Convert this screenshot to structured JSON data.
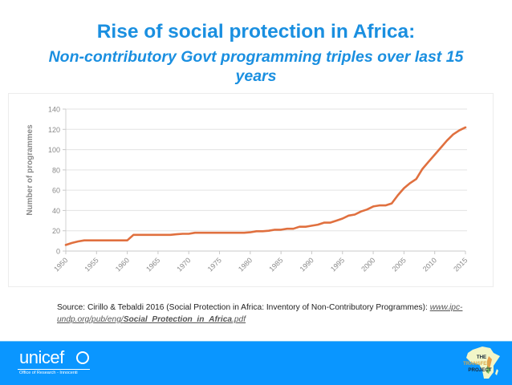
{
  "header": {
    "title": "Rise of social protection in Africa:",
    "subtitle": "Non-contributory Govt programming triples over last 15 years"
  },
  "chart_data": {
    "type": "line",
    "title": "",
    "xlabel": "",
    "ylabel": "Number of programmes",
    "xlim": [
      1950,
      2015
    ],
    "ylim": [
      0,
      140
    ],
    "x_ticks": [
      "1950",
      "1955",
      "1960",
      "1965",
      "1970",
      "1975",
      "1980",
      "1985",
      "1990",
      "1995",
      "2000",
      "2005",
      "2010",
      "2015"
    ],
    "y_ticks": [
      "0",
      "20",
      "40",
      "60",
      "80",
      "100",
      "120",
      "140"
    ],
    "grid": "horizontal",
    "legend": "none",
    "series": [
      {
        "name": "Number of programmes",
        "color": "#e0703f",
        "x": [
          1950,
          1951,
          1952,
          1953,
          1954,
          1955,
          1956,
          1957,
          1958,
          1959,
          1960,
          1961,
          1962,
          1963,
          1964,
          1965,
          1966,
          1967,
          1968,
          1969,
          1970,
          1971,
          1972,
          1973,
          1974,
          1975,
          1976,
          1977,
          1978,
          1979,
          1980,
          1981,
          1982,
          1983,
          1984,
          1985,
          1986,
          1987,
          1988,
          1989,
          1990,
          1991,
          1992,
          1993,
          1994,
          1995,
          1996,
          1997,
          1998,
          1999,
          2000,
          2001,
          2002,
          2003,
          2004,
          2005,
          2006,
          2007,
          2008,
          2009,
          2010,
          2011,
          2012,
          2013,
          2014,
          2015
        ],
        "values": [
          6,
          8,
          9.5,
          10.5,
          10.5,
          10.5,
          10.5,
          10.5,
          10.5,
          10.5,
          10.5,
          16,
          16,
          16,
          16,
          16,
          16,
          16,
          16.5,
          17,
          17,
          18,
          18,
          18,
          18,
          18,
          18,
          18,
          18,
          18,
          18.5,
          19.5,
          19.5,
          20,
          21,
          21,
          22,
          22,
          24,
          24,
          25,
          26,
          28,
          28,
          30,
          32,
          35,
          36,
          39,
          41,
          44,
          45,
          45,
          47,
          55,
          62,
          67,
          71,
          81,
          88,
          95,
          102,
          109,
          115,
          119,
          122
        ]
      }
    ]
  },
  "source": {
    "prefix": "Source: Cirillo & Tebaldi 2016 (Social Protection in Africa: Inventory of Non-Contributory Programmes): ",
    "link_plain": "www.ipc-undp.org/pub/eng/",
    "link_bold": "Social_Protection_in_Africa",
    "link_ext": ".pdf"
  },
  "footer": {
    "unicef_word": "unicef",
    "unicef_office": "Office of Research - Innocenti",
    "transfer_line1": "THE",
    "transfer_line2": "TRANSFER",
    "transfer_line3": "PROJECT",
    "colors": {
      "band": "#0a96ff",
      "title": "#1a8fe0",
      "line": "#e0703f"
    }
  }
}
